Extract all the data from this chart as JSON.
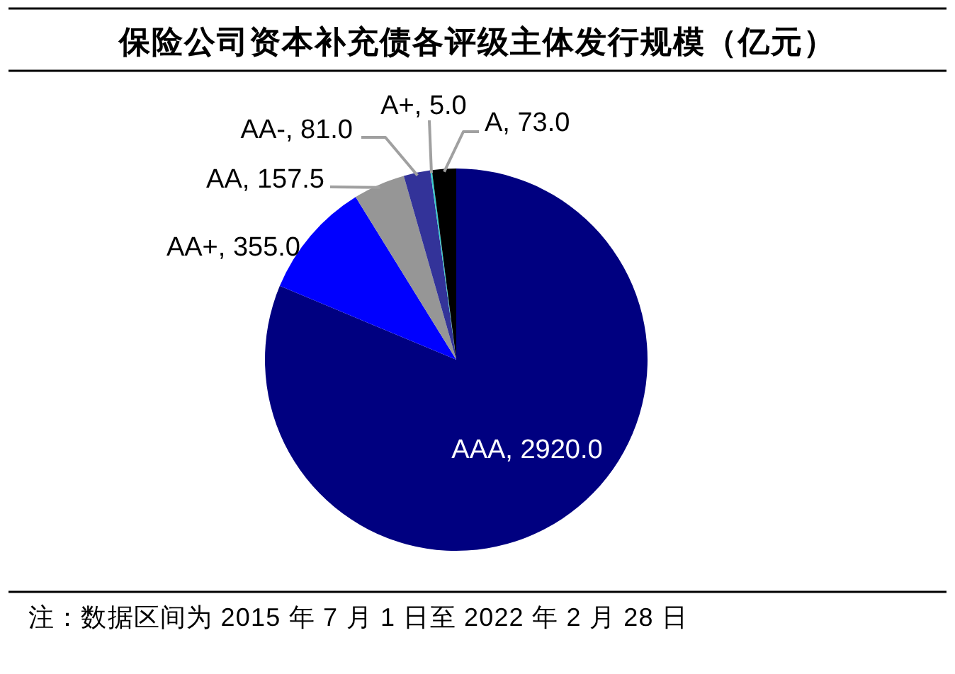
{
  "chart_data": {
    "type": "pie",
    "title": "保险公司资本补充债各评级主体发行规模（亿元）",
    "categories": [
      "AAA",
      "AA+",
      "AA",
      "AA-",
      "A+",
      "A"
    ],
    "values": [
      2920.0,
      355.0,
      157.5,
      81.0,
      5.0,
      73.0
    ],
    "value_labels": [
      "2920.0",
      "355.0",
      "157.5",
      "81.0",
      "5.0",
      "73.0"
    ],
    "colors": [
      "#000080",
      "#0000ff",
      "#969696",
      "#333399",
      "#33cccc",
      "#000000"
    ],
    "annotations": [
      "注：数据区间为 2015 年 7 月 1 日至 2022 年 2 月 28 日"
    ]
  }
}
